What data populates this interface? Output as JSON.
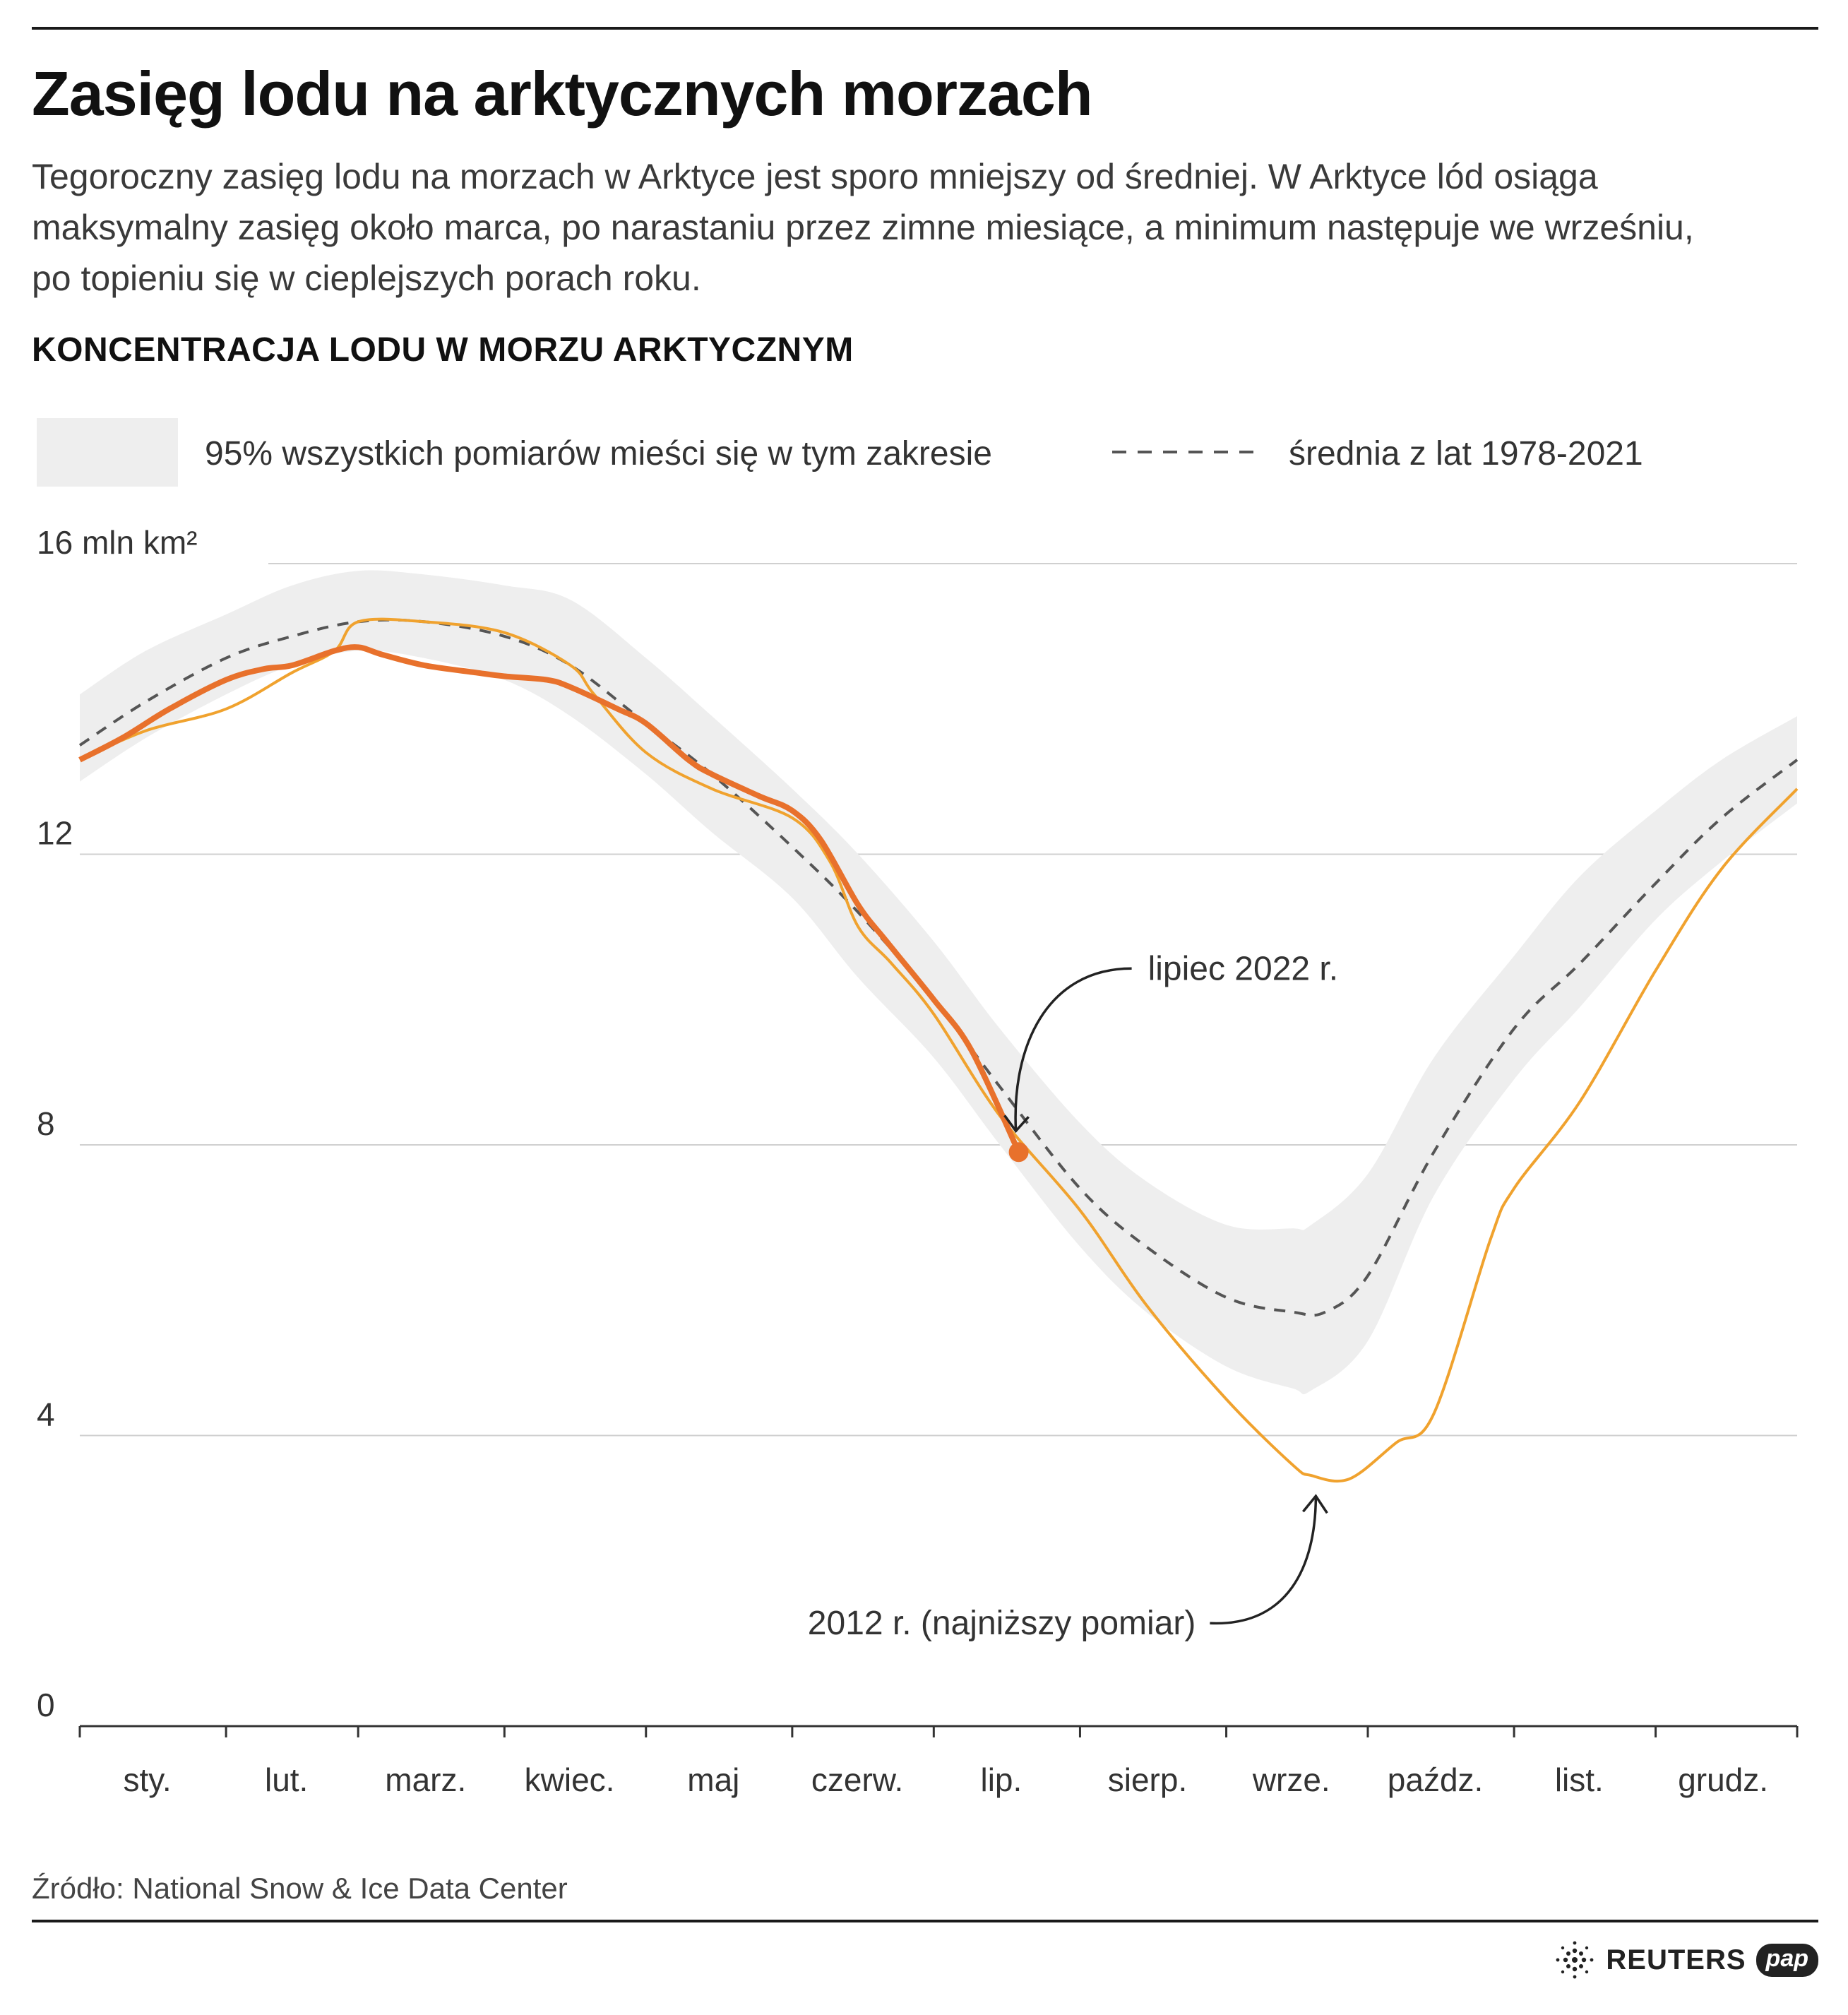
{
  "header": {
    "title": "Zasięg lodu na arktycznych morzach",
    "subtitle": "Tegoroczny zasięg lodu na morzach w Arktyce jest sporo mniejszy od średniej. W Arktyce lód osiąga maksymalny zasięg około marca, po narastaniu przez zimne miesiące, a minimum następuje we wrześniu, po topieniu się w cieplejszych porach roku.",
    "chart_heading": "KONCENTRACJA LODU W MORZU ARKTYCZNYM"
  },
  "footer": {
    "source": "Źródło: National Snow & Ice Data Center",
    "logo_reuters": "REUTERS",
    "logo_pap": "pap"
  },
  "chart_data": {
    "type": "line",
    "legend": {
      "placement": "top",
      "band_label": "95% wszystkich pomiarów mieści się w tym zakresie",
      "mean_label": "średnia z lat 1978-2021"
    },
    "y_axis": {
      "ticks": [
        0,
        4,
        8,
        12,
        16
      ],
      "tick_labels": [
        "0",
        "4",
        "8",
        "12",
        "16 mln km²"
      ],
      "ylim": [
        0,
        16
      ]
    },
    "x_axis": {
      "months": [
        "sty.",
        "lut.",
        "marz.",
        "kwiec.",
        "maj",
        "czerw.",
        "lip.",
        "sierp.",
        "wrze.",
        "paźdz.",
        "list.",
        "grudz."
      ],
      "xlim_days": [
        1,
        365
      ]
    },
    "grid": true,
    "colors": {
      "band": "#eeeeee",
      "mean": "#555555",
      "y2022": "#e8712c",
      "y2012": "#f0a22e",
      "grid": "#d0d0d0",
      "text": "#333333"
    },
    "series": {
      "band": {
        "day": [
          1,
          15,
          32,
          46,
          60,
          74,
          91,
          105,
          121,
          135,
          152,
          166,
          182,
          196,
          213,
          227,
          244,
          258,
          262,
          274,
          288,
          305,
          319,
          335,
          349,
          365
        ],
        "upper": [
          14.2,
          14.8,
          15.3,
          15.7,
          15.9,
          15.85,
          15.7,
          15.5,
          14.7,
          13.9,
          12.9,
          12.0,
          10.8,
          9.6,
          8.3,
          7.5,
          6.9,
          6.85,
          6.9,
          7.6,
          9.2,
          10.6,
          11.7,
          12.6,
          13.3,
          13.9
        ],
        "lower": [
          13.0,
          13.6,
          14.2,
          14.6,
          14.8,
          14.7,
          14.4,
          13.9,
          13.1,
          12.3,
          11.4,
          10.3,
          9.2,
          8.0,
          6.6,
          5.7,
          4.95,
          4.65,
          4.62,
          5.3,
          7.3,
          8.9,
          9.9,
          11.1,
          11.9,
          12.7
        ]
      },
      "mean": {
        "name": "średnia z lat 1978-2021",
        "day": [
          1,
          15,
          32,
          46,
          60,
          74,
          91,
          105,
          121,
          135,
          152,
          166,
          182,
          196,
          213,
          227,
          244,
          258,
          265,
          274,
          288,
          305,
          319,
          335,
          349,
          365
        ],
        "value": [
          13.5,
          14.1,
          14.7,
          15.0,
          15.2,
          15.2,
          15.0,
          14.6,
          13.8,
          13.1,
          12.1,
          11.2,
          10.0,
          8.8,
          7.4,
          6.6,
          5.9,
          5.7,
          5.7,
          6.2,
          7.9,
          9.6,
          10.5,
          11.6,
          12.5,
          13.3
        ]
      },
      "y2022": {
        "name": "lipiec 2022 r.",
        "day": [
          1,
          10,
          20,
          32,
          40,
          46,
          55,
          60,
          65,
          74,
          85,
          91,
          100,
          105,
          115,
          121,
          130,
          135,
          145,
          152,
          158,
          166,
          172,
          182,
          190,
          200
        ],
        "value": [
          13.3,
          13.6,
          14.0,
          14.4,
          14.55,
          14.6,
          14.8,
          14.85,
          14.75,
          14.6,
          14.5,
          14.45,
          14.4,
          14.3,
          14.0,
          13.8,
          13.3,
          13.1,
          12.8,
          12.6,
          12.2,
          11.3,
          10.8,
          10.0,
          9.3,
          7.9
        ]
      },
      "y2012": {
        "name": "2012 r. (najniższy pomiar)",
        "day": [
          1,
          15,
          32,
          46,
          55,
          60,
          74,
          91,
          105,
          110,
          121,
          135,
          152,
          160,
          166,
          173,
          182,
          196,
          213,
          227,
          244,
          258,
          262,
          270,
          280,
          288,
          300,
          305,
          319,
          335,
          349,
          365
        ],
        "value": [
          13.3,
          13.7,
          14.0,
          14.5,
          14.8,
          15.2,
          15.2,
          15.05,
          14.6,
          14.2,
          13.4,
          12.9,
          12.5,
          11.9,
          11.0,
          10.5,
          9.8,
          8.4,
          7.1,
          5.8,
          4.5,
          3.6,
          3.45,
          3.4,
          3.9,
          4.3,
          6.7,
          7.4,
          8.6,
          10.4,
          11.8,
          12.9
        ]
      }
    },
    "annotations": [
      {
        "text": "lipiec 2022 r.",
        "target": "y2022",
        "day": 200,
        "value": 7.9
      },
      {
        "text": "2012 r. (najniższy pomiar)",
        "target": "y2012",
        "day": 254,
        "value": 3.4
      }
    ]
  }
}
